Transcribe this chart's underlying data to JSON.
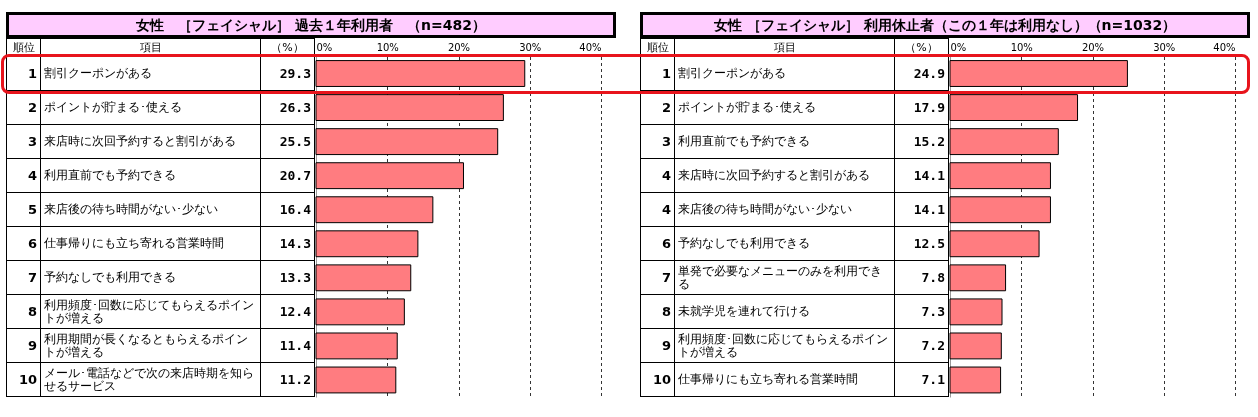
{
  "chart_data": [
    {
      "type": "bar",
      "orientation": "horizontal",
      "title": "女性　［フェイシャル］ 過去１年利用者　（n=482）",
      "categories": [
        "割引クーポンがある",
        "ポイントが貯まる･使える",
        "来店時に次回予約すると割引がある",
        "利用直前でも予約できる",
        "来店後の待ち時間がない･少ない",
        "仕事帰りにも立ち寄れる営業時間",
        "予約なしでも利用できる",
        "利用頻度･回数に応じてもらえるポイントが増える",
        "利用期間が長くなるともらえるポイントが増える",
        "メール･電話などで次の来店時期を知らせるサービス"
      ],
      "values": [
        29.3,
        26.3,
        25.5,
        20.7,
        16.4,
        14.3,
        13.3,
        12.4,
        11.4,
        11.2
      ],
      "color": "#ff7c80",
      "data_labels": true,
      "grid": "x",
      "xlim": [
        0,
        40
      ],
      "xticks": [
        {
          "value": 0,
          "label": "0%"
        },
        {
          "value": 10,
          "label": "10%"
        },
        {
          "value": 20,
          "label": "20%"
        },
        {
          "value": 30,
          "label": "30%"
        },
        {
          "value": 40,
          "label": "40%"
        }
      ],
      "annotations": [
        "順位",
        "項目",
        "（%）",
        "1",
        "2",
        "3",
        "4",
        "5",
        "6",
        "7",
        "8",
        "9",
        "10"
      ]
    },
    {
      "type": "bar",
      "orientation": "horizontal",
      "title": "女性 ［フェイシャル］ 利用休止者（この１年は利用なし）（n=1032）",
      "categories": [
        "割引クーポンがある",
        "ポイントが貯まる･使える",
        "利用直前でも予約できる",
        "来店時に次回予約すると割引がある",
        "来店後の待ち時間がない･少ない",
        "予約なしでも利用できる",
        "単発で必要なメニューのみを利用できる",
        "未就学児を連れて行ける",
        "利用頻度･回数に応じてもらえるポイントが増える",
        "仕事帰りにも立ち寄れる営業時間"
      ],
      "values": [
        24.9,
        17.9,
        15.2,
        14.1,
        14.1,
        12.5,
        7.8,
        7.3,
        7.2,
        7.1
      ],
      "color": "#ff7c80",
      "data_labels": true,
      "grid": "x",
      "xlim": [
        0,
        40
      ],
      "xticks": [
        {
          "value": 0,
          "label": "0%"
        },
        {
          "value": 10,
          "label": "10%"
        },
        {
          "value": 20,
          "label": "20%"
        },
        {
          "value": 30,
          "label": "30%"
        },
        {
          "value": 40,
          "label": "40%"
        }
      ],
      "annotations": [
        "順位",
        "項目",
        "（%）",
        "1",
        "2",
        "3",
        "4",
        "4",
        "6",
        "7",
        "8",
        "9",
        "10"
      ]
    }
  ]
}
